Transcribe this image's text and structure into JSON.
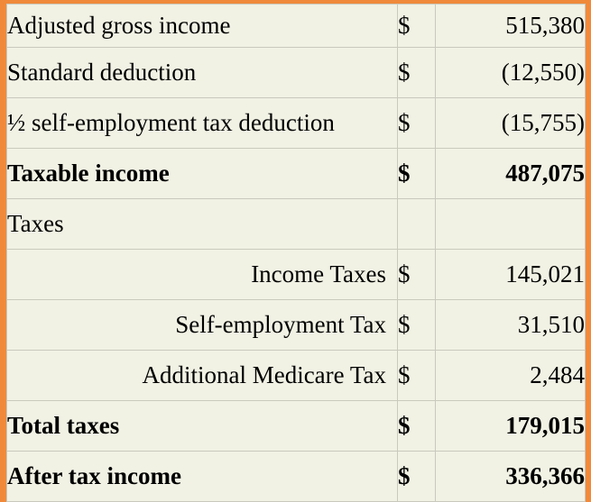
{
  "table": {
    "rows": [
      {
        "label": "Adjusted gross income",
        "currency": "$",
        "amount": "515,380",
        "bold": false,
        "indent": false
      },
      {
        "label": "Standard deduction",
        "currency": "$",
        "amount": "(12,550)",
        "bold": false,
        "indent": false
      },
      {
        "label": "½ self-employment tax deduction",
        "currency": "$",
        "amount": "(15,755)",
        "bold": false,
        "indent": false
      },
      {
        "label": "Taxable income",
        "currency": "$",
        "amount": "487,075",
        "bold": true,
        "indent": false
      },
      {
        "label": "Taxes",
        "currency": "",
        "amount": "",
        "bold": false,
        "indent": false
      },
      {
        "label": "Income Taxes",
        "currency": "$",
        "amount": "145,021",
        "bold": false,
        "indent": true
      },
      {
        "label": "Self-employment Tax",
        "currency": "$",
        "amount": "31,510",
        "bold": false,
        "indent": true
      },
      {
        "label": "Additional Medicare Tax",
        "currency": "$",
        "amount": "2,484",
        "bold": false,
        "indent": true
      },
      {
        "label": "Total taxes",
        "currency": "$",
        "amount": "179,015",
        "bold": true,
        "indent": false
      },
      {
        "label": "After tax income",
        "currency": "$",
        "amount": "336,366",
        "bold": true,
        "indent": false
      }
    ]
  },
  "colors": {
    "frame": "#f08a3a",
    "table_background": "#f1f1e4",
    "grid_line": "#c9c9bd",
    "text": "#000000"
  }
}
